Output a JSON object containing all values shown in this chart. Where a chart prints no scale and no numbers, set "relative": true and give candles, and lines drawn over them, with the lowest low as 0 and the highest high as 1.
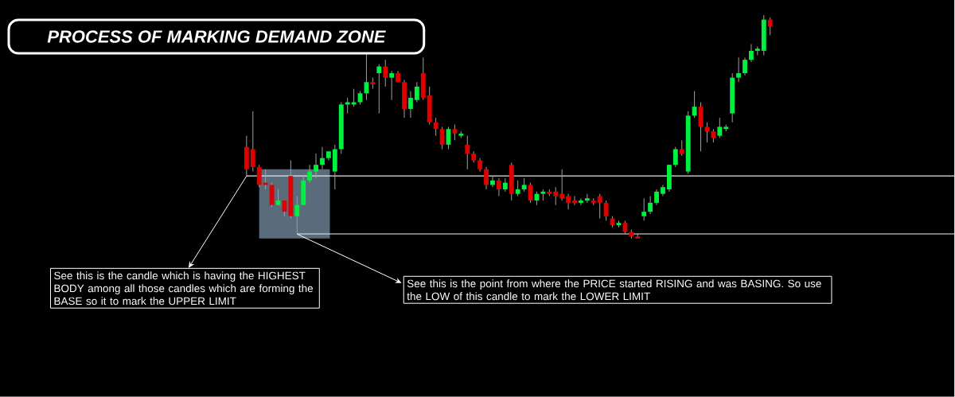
{
  "chart_data": {
    "type": "candlestick",
    "title": "PROCESS OF MARKING DEMAND ZONE",
    "relative": true,
    "categories": [
      null,
      null,
      null,
      null,
      null,
      null,
      null,
      null,
      null,
      null,
      null,
      null,
      null,
      null,
      null,
      null,
      null,
      null,
      null,
      null,
      null,
      null,
      null,
      null,
      null,
      null,
      null,
      null,
      null,
      null,
      null,
      null,
      null,
      null,
      null,
      null,
      null,
      null,
      null,
      null,
      null,
      null,
      null,
      null,
      null,
      null,
      null,
      null,
      null,
      null,
      null,
      null,
      null,
      null,
      null,
      null,
      null,
      null,
      null,
      null,
      null,
      null,
      null,
      null,
      null,
      null,
      null,
      null,
      null,
      null,
      null,
      null,
      null,
      null,
      null,
      null,
      null,
      null,
      null,
      null,
      null,
      null,
      null,
      null
    ],
    "ohlc": [
      [
        0.41,
        0.46,
        0.28,
        0.31
      ],
      [
        0.4,
        0.57,
        0.3,
        0.32
      ],
      [
        0.32,
        0.33,
        0.23,
        0.24
      ],
      [
        0.25,
        0.31,
        0.22,
        0.24
      ],
      [
        0.24,
        0.25,
        0.14,
        0.15
      ],
      [
        0.15,
        0.22,
        0.15,
        0.17
      ],
      [
        0.17,
        0.17,
        0.1,
        0.12
      ],
      [
        0.28,
        0.35,
        0.09,
        0.1
      ],
      [
        0.1,
        0.19,
        0.02,
        0.15
      ],
      [
        0.15,
        0.28,
        0.15,
        0.26
      ],
      [
        0.26,
        0.33,
        0.25,
        0.3
      ],
      [
        0.3,
        0.38,
        0.27,
        0.33
      ],
      [
        0.33,
        0.41,
        0.31,
        0.36
      ],
      [
        0.36,
        0.39,
        0.35,
        0.39
      ],
      [
        0.3,
        0.42,
        0.22,
        0.4
      ],
      [
        0.4,
        0.61,
        0.38,
        0.6
      ],
      [
        0.6,
        0.63,
        0.56,
        0.61
      ],
      [
        0.6,
        0.67,
        0.59,
        0.61
      ],
      [
        0.61,
        0.66,
        0.6,
        0.65
      ],
      [
        0.65,
        0.83,
        0.62,
        0.7
      ],
      [
        0.7,
        0.72,
        0.67,
        0.69
      ],
      [
        0.74,
        0.78,
        0.56,
        0.77
      ],
      [
        0.77,
        0.8,
        0.68,
        0.72
      ],
      [
        0.72,
        0.75,
        0.62,
        0.74
      ],
      [
        0.74,
        0.75,
        0.7,
        0.7
      ],
      [
        0.7,
        0.71,
        0.54,
        0.58
      ],
      [
        0.58,
        0.66,
        0.54,
        0.63
      ],
      [
        0.62,
        0.7,
        0.61,
        0.68
      ],
      [
        0.74,
        0.81,
        0.62,
        0.63
      ],
      [
        0.64,
        0.68,
        0.51,
        0.52
      ],
      [
        0.52,
        0.54,
        0.46,
        0.49
      ],
      [
        0.49,
        0.5,
        0.4,
        0.42
      ],
      [
        0.42,
        0.5,
        0.4,
        0.49
      ],
      [
        0.49,
        0.51,
        0.44,
        0.47
      ],
      [
        0.46,
        0.48,
        0.45,
        0.47
      ],
      [
        0.42,
        0.46,
        0.31,
        0.38
      ],
      [
        0.38,
        0.39,
        0.34,
        0.35
      ],
      [
        0.35,
        0.36,
        0.3,
        0.31
      ],
      [
        0.31,
        0.32,
        0.22,
        0.24
      ],
      [
        0.24,
        0.28,
        0.23,
        0.26
      ],
      [
        0.26,
        0.27,
        0.19,
        0.22
      ],
      [
        0.22,
        0.27,
        0.21,
        0.25
      ],
      [
        0.33,
        0.34,
        0.17,
        0.2
      ],
      [
        0.2,
        0.26,
        0.19,
        0.22
      ],
      [
        0.22,
        0.27,
        0.21,
        0.24
      ],
      [
        0.24,
        0.25,
        0.16,
        0.17
      ],
      [
        0.17,
        0.21,
        0.15,
        0.2
      ],
      [
        0.2,
        0.22,
        0.17,
        0.21
      ],
      [
        0.21,
        0.22,
        0.19,
        0.2
      ],
      [
        0.21,
        0.23,
        0.15,
        0.19
      ],
      [
        0.2,
        0.31,
        0.17,
        0.18
      ],
      [
        0.19,
        0.2,
        0.13,
        0.16
      ],
      [
        0.17,
        0.19,
        0.15,
        0.16
      ],
      [
        0.16,
        0.18,
        0.15,
        0.17
      ],
      [
        0.17,
        0.2,
        0.16,
        0.18
      ],
      [
        0.17,
        0.18,
        0.15,
        0.16
      ],
      [
        0.19,
        0.2,
        0.09,
        0.16
      ],
      [
        0.16,
        0.17,
        0.08,
        0.1
      ],
      [
        0.09,
        0.1,
        0.05,
        0.06
      ],
      [
        0.06,
        0.08,
        0.05,
        0.07
      ],
      [
        0.07,
        0.08,
        0.02,
        0.03
      ],
      [
        0.03,
        0.04,
        0,
        0.01
      ],
      [
        0.01,
        0.02,
        0,
        0
      ],
      [
        0.1,
        0.18,
        0.08,
        0.12
      ],
      [
        0.12,
        0.19,
        0.11,
        0.16
      ],
      [
        0.16,
        0.22,
        0.15,
        0.21
      ],
      [
        0.2,
        0.24,
        0.19,
        0.23
      ],
      [
        0.22,
        0.33,
        0.21,
        0.33
      ],
      [
        0.33,
        0.41,
        0.32,
        0.4
      ],
      [
        0.4,
        0.44,
        0.37,
        0.38
      ],
      [
        0.3,
        0.57,
        0.29,
        0.55
      ],
      [
        0.55,
        0.66,
        0.54,
        0.59
      ],
      [
        0.59,
        0.61,
        0.39,
        0.5
      ],
      [
        0.5,
        0.52,
        0.43,
        0.48
      ],
      [
        0.48,
        0.49,
        0.43,
        0.45
      ],
      [
        0.46,
        0.54,
        0.45,
        0.5
      ],
      [
        0.49,
        0.51,
        0.48,
        0.5
      ],
      [
        0.56,
        0.74,
        0.52,
        0.72
      ],
      [
        0.72,
        0.81,
        0.7,
        0.74
      ],
      [
        0.74,
        0.81,
        0.73,
        0.8
      ],
      [
        0.8,
        0.87,
        0.79,
        0.84
      ],
      [
        0.84,
        0.86,
        0.82,
        0.85
      ],
      [
        0.84,
        1,
        0.82,
        0.98
      ],
      [
        0.98,
        0.99,
        0.91,
        0.95
      ]
    ],
    "ref_lines": [
      {
        "axis": "y",
        "value": 0.28,
        "color": "#e6e6e6"
      },
      {
        "axis": "y",
        "value": 0.02,
        "color": "#e6e6e6"
      }
    ],
    "bands": [
      {
        "axis": "y",
        "from": 0,
        "to": 0.31,
        "color": "#5a6b7b"
      }
    ],
    "annotations": [
      "See this is the candle which is having the HIGHEST BODY among all those candles which are forming the BASE so it to mark the UPPER LIMIT",
      "See this is the point from where the PRICE started RISING and was BASING. So use the LOW of this candle to mark the LOWER LIMIT"
    ]
  }
}
